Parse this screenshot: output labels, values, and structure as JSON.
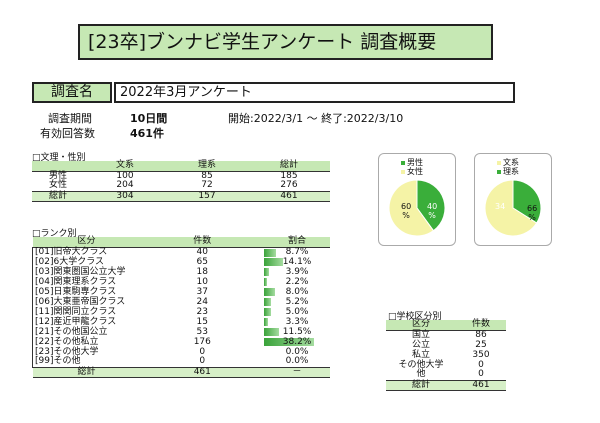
{
  "title": "[23卒]ブンナビ学生アンケート 調査概要",
  "survey": {
    "label": "調査名",
    "name": "2022年3月アンケート",
    "period_label": "調査期間",
    "period_value": "10日間",
    "period_range": "開始:2022/3/1 ～ 終了:2022/3/10",
    "responses_label": "有効回答数",
    "responses_value": "461件"
  },
  "gender_table": {
    "section": "□文理・性別",
    "headers": [
      "",
      "文系",
      "理系",
      "総計"
    ],
    "rows": [
      {
        "label": "男性",
        "bunkei": "100",
        "rikei": "85",
        "total": "185"
      },
      {
        "label": "女性",
        "bunkei": "204",
        "rikei": "72",
        "total": "276"
      }
    ],
    "total": {
      "label": "総計",
      "bunkei": "304",
      "rikei": "157",
      "total": "461"
    }
  },
  "rank_table": {
    "section": "□ランク別",
    "headers": [
      "区分",
      "件数",
      "割合"
    ],
    "rows": [
      {
        "label": "[01]旧帝大クラス",
        "count": "40",
        "pct": "8.7%",
        "ratio": 0.087
      },
      {
        "label": "[02]6大学クラス",
        "count": "65",
        "pct": "14.1%",
        "ratio": 0.141
      },
      {
        "label": "[03]関東圏国公立大学",
        "count": "18",
        "pct": "3.9%",
        "ratio": 0.039
      },
      {
        "label": "[04]関東理系クラス",
        "count": "10",
        "pct": "2.2%",
        "ratio": 0.022
      },
      {
        "label": "[05]日東駒専クラス",
        "count": "37",
        "pct": "8.0%",
        "ratio": 0.08
      },
      {
        "label": "[06]大東亜帝国クラス",
        "count": "24",
        "pct": "5.2%",
        "ratio": 0.052
      },
      {
        "label": "[11]関関同立クラス",
        "count": "23",
        "pct": "5.0%",
        "ratio": 0.05
      },
      {
        "label": "[12]産近甲龍クラス",
        "count": "15",
        "pct": "3.3%",
        "ratio": 0.033
      },
      {
        "label": "[21]その他国公立",
        "count": "53",
        "pct": "11.5%",
        "ratio": 0.115
      },
      {
        "label": "[22]その他私立",
        "count": "176",
        "pct": "38.2%",
        "ratio": 0.382
      },
      {
        "label": "[23]その他大学",
        "count": "0",
        "pct": "0.0%",
        "ratio": 0
      },
      {
        "label": "[99]その他",
        "count": "0",
        "pct": "0.0%",
        "ratio": 0
      }
    ],
    "total": {
      "label": "総計",
      "count": "461",
      "pct": "－"
    }
  },
  "school_table": {
    "section": "□学校区分別",
    "headers": [
      "区分",
      "件数"
    ],
    "rows": [
      {
        "label": "国立",
        "count": "86"
      },
      {
        "label": "公立",
        "count": "25"
      },
      {
        "label": "私立",
        "count": "350"
      },
      {
        "label": "その他大学",
        "count": "0"
      },
      {
        "label": "他",
        "count": "0"
      }
    ],
    "total": {
      "label": "総計",
      "count": "461"
    }
  },
  "pie_gender": {
    "legend": [
      "男性",
      "女性"
    ],
    "colors": [
      "#3aae3a",
      "#f5f3a6"
    ],
    "values": [
      40,
      60
    ],
    "label_green": "40",
    "label_yellow": "60",
    "unit": "%"
  },
  "pie_field": {
    "legend": [
      "文系",
      "理系"
    ],
    "colors": [
      "#f5f3a6",
      "#3aae3a"
    ],
    "values": [
      66,
      34
    ],
    "label_green": "34",
    "label_yellow": "66",
    "unit": "%"
  }
}
